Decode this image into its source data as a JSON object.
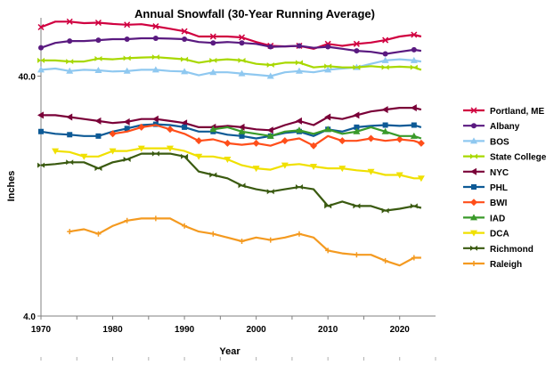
{
  "chart_data": {
    "type": "line",
    "title": "Annual Snowfall (30-Year Running Average)",
    "xlabel": "Year",
    "ylabel": "Inches",
    "xlim": [
      1970,
      2025
    ],
    "ylim": [
      4,
      70
    ],
    "yscale": "log",
    "xticks": [
      1970,
      1980,
      1990,
      2000,
      2010,
      2020
    ],
    "yticks": [
      {
        "value": 40,
        "label": "40.0"
      },
      {
        "value": 4,
        "label": "4.0"
      }
    ],
    "grid": false,
    "legend_position": "right",
    "series": [
      {
        "name": "Portland, ME",
        "color": "#d00040",
        "marker": "x",
        "x": [
          1970,
          1972,
          1974,
          1976,
          1978,
          1980,
          1982,
          1984,
          1986,
          1988,
          1990,
          1992,
          1994,
          1996,
          1998,
          2000,
          2002,
          2004,
          2006,
          2008,
          2010,
          2012,
          2014,
          2016,
          2018,
          2020,
          2022,
          2023
        ],
        "y": [
          64,
          67.5,
          67.5,
          66.5,
          66.8,
          66,
          65.5,
          65.8,
          64.5,
          63,
          61.5,
          58.5,
          58.5,
          58.5,
          58,
          55.5,
          53.5,
          53.2,
          53.5,
          52,
          54.5,
          53.5,
          54.5,
          55.2,
          56.5,
          58.5,
          59.5,
          58.5
        ]
      },
      {
        "name": "Albany",
        "color": "#5a1a80",
        "marker": "circle",
        "x": [
          1970,
          1972,
          1974,
          1976,
          1978,
          1980,
          1982,
          1984,
          1986,
          1988,
          1990,
          1992,
          1994,
          1996,
          1998,
          2000,
          2002,
          2004,
          2006,
          2008,
          2010,
          2012,
          2014,
          2016,
          2018,
          2020,
          2022,
          2023
        ],
        "y": [
          52.5,
          55,
          56,
          56,
          56.5,
          57,
          57,
          57.5,
          57.5,
          57.3,
          57,
          55.5,
          55,
          55.5,
          55,
          54.5,
          53,
          53.2,
          53.5,
          52.5,
          53,
          52,
          51,
          50.5,
          49.5,
          50.5,
          51.5,
          51
        ]
      },
      {
        "name": "BOS",
        "color": "#8fc8f0",
        "marker": "triangle",
        "x": [
          1970,
          1972,
          1974,
          1976,
          1978,
          1980,
          1982,
          1984,
          1986,
          1988,
          1990,
          1992,
          1994,
          1996,
          1998,
          2000,
          2002,
          2004,
          2006,
          2008,
          2010,
          2012,
          2014,
          2016,
          2018,
          2020,
          2022,
          2023
        ],
        "y": [
          42.5,
          43,
          42,
          42.5,
          42.3,
          41.8,
          42,
          42.5,
          42.5,
          42,
          41.8,
          40.3,
          41.5,
          41.5,
          41,
          40.5,
          40,
          41.5,
          42,
          41.5,
          42.5,
          43,
          43.5,
          45,
          46.5,
          47,
          46.5,
          46
        ]
      },
      {
        "name": "State College",
        "color": "#a8d800",
        "marker": "bowtie",
        "x": [
          1970,
          1972,
          1974,
          1976,
          1978,
          1980,
          1982,
          1984,
          1986,
          1988,
          1990,
          1992,
          1994,
          1996,
          1998,
          2000,
          2002,
          2004,
          2006,
          2008,
          2010,
          2012,
          2014,
          2016,
          2018,
          2020,
          2022,
          2023
        ],
        "y": [
          46.5,
          46.5,
          46,
          46,
          47.3,
          47,
          47.5,
          47.8,
          48,
          47.5,
          47,
          45.5,
          46.5,
          47,
          46.5,
          45,
          44.5,
          45.5,
          45.5,
          43.5,
          44,
          43.5,
          43.5,
          44,
          43.5,
          43.8,
          43.5,
          42.5
        ]
      },
      {
        "name": "NYC",
        "color": "#7a0038",
        "marker": "triangle-left",
        "x": [
          1970,
          1972,
          1974,
          1976,
          1978,
          1980,
          1982,
          1984,
          1986,
          1988,
          1990,
          1992,
          1994,
          1996,
          1998,
          2000,
          2002,
          2004,
          2006,
          2008,
          2010,
          2012,
          2014,
          2016,
          2018,
          2020,
          2022,
          2023
        ],
        "y": [
          27.5,
          27.5,
          27,
          26.5,
          26,
          25.5,
          25.8,
          26.5,
          26.5,
          26,
          25.5,
          24.5,
          24.5,
          24.8,
          24.5,
          24,
          23.8,
          25,
          26,
          25,
          27,
          26.5,
          27.5,
          28.5,
          29,
          29.5,
          29.5,
          29
        ]
      },
      {
        "name": "PHL",
        "color": "#0d5a96",
        "marker": "square",
        "x": [
          1970,
          1972,
          1974,
          1976,
          1978,
          1980,
          1982,
          1984,
          1986,
          1988,
          1990,
          1992,
          1994,
          1996,
          1998,
          2000,
          2002,
          2004,
          2006,
          2008,
          2010,
          2012,
          2014,
          2016,
          2018,
          2020,
          2022,
          2023
        ],
        "y": [
          23.5,
          23,
          22.8,
          22.5,
          22.5,
          23.5,
          24.2,
          25,
          25.2,
          25,
          24.5,
          23.5,
          23.5,
          22.8,
          22.5,
          22,
          22.5,
          23.2,
          23.5,
          22.5,
          24,
          23.5,
          24.5,
          24.8,
          25,
          24.8,
          25,
          24.5
        ]
      },
      {
        "name": "BWI",
        "color": "#ff4e1a",
        "marker": "diamond",
        "x": [
          1970,
          1972,
          1974,
          1976,
          1978,
          1980,
          1982,
          1984,
          1986,
          1988,
          1990,
          1992,
          1994,
          1996,
          1998,
          2000,
          2002,
          2004,
          2006,
          2008,
          2010,
          2012,
          2014,
          2016,
          2018,
          2020,
          2022,
          2023
        ],
        "y": [
          null,
          null,
          null,
          null,
          null,
          23,
          23.5,
          24.5,
          25,
          24,
          23,
          21.5,
          21.8,
          21,
          20.7,
          21,
          20.5,
          21.5,
          22,
          20.5,
          22.5,
          21.5,
          21.5,
          22,
          21.5,
          21.8,
          21.5,
          21
        ]
      },
      {
        "name": "IAD",
        "color": "#3a9a2a",
        "marker": "triangle",
        "x": [
          1970,
          1972,
          1974,
          1976,
          1978,
          1980,
          1982,
          1984,
          1986,
          1988,
          1990,
          1992,
          1994,
          1996,
          1998,
          2000,
          2002,
          2004,
          2006,
          2008,
          2010,
          2012,
          2014,
          2016,
          2018,
          2020,
          2022,
          2023
        ],
        "y": [
          null,
          null,
          null,
          null,
          null,
          null,
          null,
          null,
          null,
          null,
          null,
          null,
          24,
          24.5,
          23.5,
          23,
          22.5,
          23.5,
          23.8,
          23,
          24,
          23,
          23.5,
          24.5,
          23.5,
          22.5,
          22.5,
          22
        ]
      },
      {
        "name": "DCA",
        "color": "#f0e000",
        "marker": "triangle-down",
        "x": [
          1970,
          1972,
          1974,
          1976,
          1978,
          1980,
          1982,
          1984,
          1986,
          1988,
          1990,
          1992,
          1994,
          1996,
          1998,
          2000,
          2002,
          2004,
          2006,
          2008,
          2010,
          2012,
          2014,
          2016,
          2018,
          2020,
          2022,
          2023
        ],
        "y": [
          null,
          19.5,
          19.3,
          18.5,
          18.5,
          19.5,
          19.5,
          20,
          20,
          20,
          19.5,
          18.5,
          18.5,
          18,
          17,
          16.5,
          16.3,
          17,
          17.2,
          16.8,
          16.5,
          16.5,
          16.2,
          16,
          15.5,
          15.5,
          15,
          15
        ]
      },
      {
        "name": "Richmond",
        "color": "#3a5a10",
        "marker": "bowtie",
        "x": [
          1970,
          1972,
          1974,
          1976,
          1978,
          1980,
          1982,
          1984,
          1986,
          1988,
          1990,
          1992,
          1994,
          1996,
          1998,
          2000,
          2002,
          2004,
          2006,
          2008,
          2010,
          2012,
          2014,
          2016,
          2018,
          2020,
          2022,
          2023
        ],
        "y": [
          17,
          17.2,
          17.5,
          17.5,
          16.5,
          17.5,
          18,
          19,
          19,
          19,
          18.5,
          16,
          15.5,
          15,
          14,
          13.5,
          13.2,
          13.5,
          13.8,
          13.5,
          11.5,
          12,
          11.5,
          11.5,
          11,
          11.2,
          11.5,
          11.3
        ]
      },
      {
        "name": "Raleigh",
        "color": "#f49a20",
        "marker": "plus",
        "x": [
          1970,
          1972,
          1974,
          1976,
          1978,
          1980,
          1982,
          1984,
          1986,
          1988,
          1990,
          1992,
          1994,
          1996,
          1998,
          2000,
          2002,
          2004,
          2006,
          2008,
          2010,
          2012,
          2014,
          2016,
          2018,
          2020,
          2022,
          2023
        ],
        "y": [
          null,
          null,
          9,
          9.2,
          8.8,
          9.5,
          10,
          10.2,
          10.2,
          10.2,
          9.5,
          9,
          8.8,
          8.5,
          8.2,
          8.5,
          8.3,
          8.5,
          8.8,
          8.5,
          7.5,
          7.3,
          7.2,
          7.2,
          6.8,
          6.5,
          7,
          7
        ]
      }
    ]
  }
}
